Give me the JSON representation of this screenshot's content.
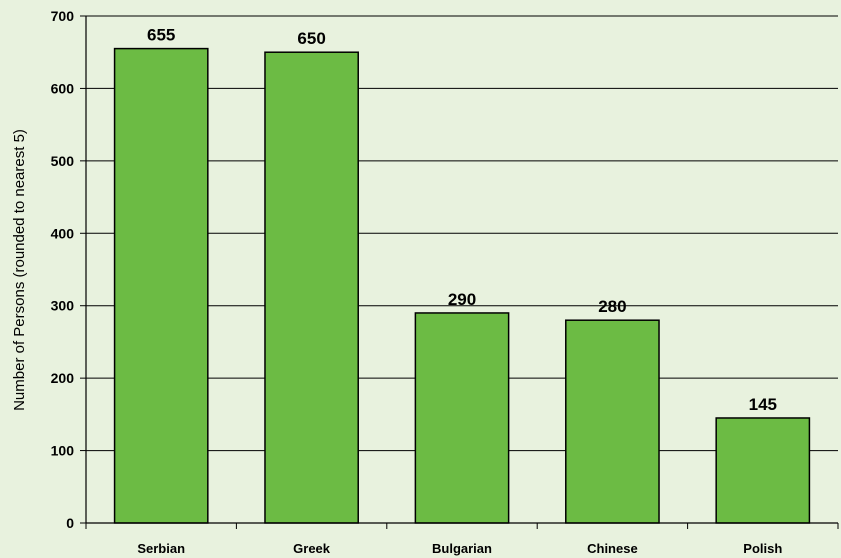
{
  "chart_data": {
    "type": "bar",
    "categories": [
      "Serbian",
      "Greek",
      "Bulgarian",
      "Chinese",
      "Polish"
    ],
    "values": [
      655,
      650,
      290,
      280,
      145
    ],
    "data_labels": [
      "655",
      "650",
      "290",
      "280",
      "145"
    ],
    "title": "",
    "xlabel": "",
    "ylabel": "Number of Persons (rounded to nearest 5)",
    "ylim": [
      0,
      700
    ],
    "yticks": [
      0,
      100,
      200,
      300,
      400,
      500,
      600,
      700
    ],
    "ytick_labels": [
      "0",
      "100",
      "200",
      "300",
      "400",
      "500",
      "600",
      "700"
    ],
    "grid": true,
    "legend": "none",
    "colors": {
      "background": "#e8f2de",
      "bar_fill": "#6cbb44",
      "bar_stroke": "#000000",
      "gridline": "#000000"
    }
  }
}
